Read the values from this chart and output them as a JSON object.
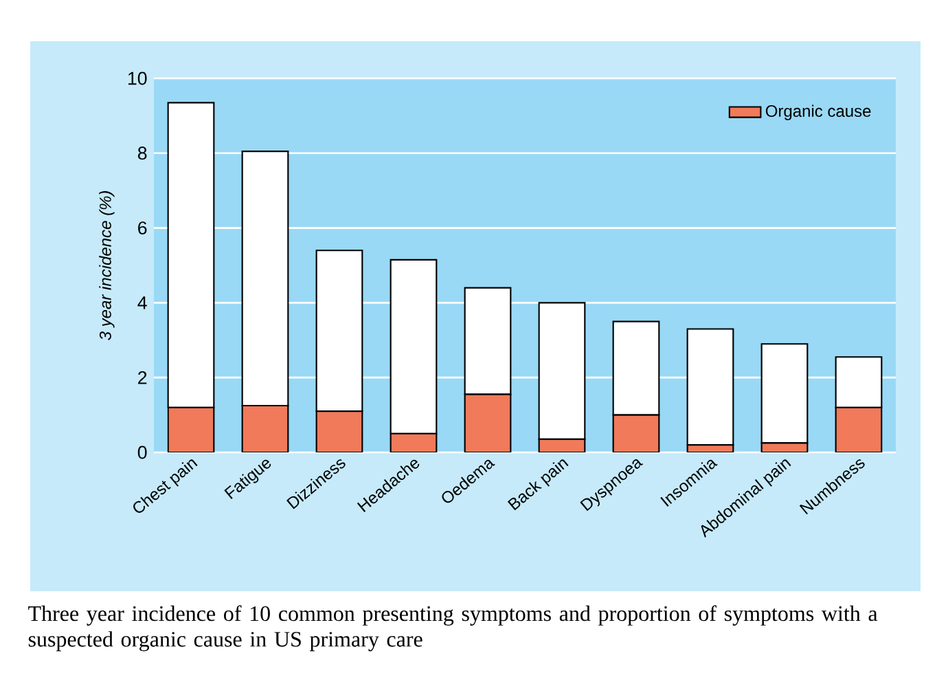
{
  "chart_data": {
    "type": "bar",
    "stacked": true,
    "ylabel": "3 year incidence (%)",
    "categories": [
      "Chest pain",
      "Fatigue",
      "Dizziness",
      "Headache",
      "Oedema",
      "Back pain",
      "Dyspnoea",
      "Insomnia",
      "Abdominal pain",
      "Numbness"
    ],
    "series": [
      {
        "name": "Organic cause",
        "color": "#f07a5a",
        "values": [
          1.2,
          1.25,
          1.1,
          0.5,
          1.55,
          0.35,
          1.0,
          0.2,
          0.25,
          1.2
        ]
      },
      {
        "color": "#ffffff",
        "values": [
          8.15,
          6.8,
          4.3,
          4.65,
          2.85,
          3.65,
          2.5,
          3.1,
          2.65,
          1.35
        ]
      }
    ],
    "ylim": [
      0,
      10
    ],
    "yticks": [
      0,
      2,
      4,
      6,
      8,
      10
    ],
    "grid": "y",
    "legend": "top right",
    "annotations": [
      "Three year incidence of 10 common presenting symptoms and proportion of symptoms with a suspected organic cause in US primary care"
    ]
  }
}
